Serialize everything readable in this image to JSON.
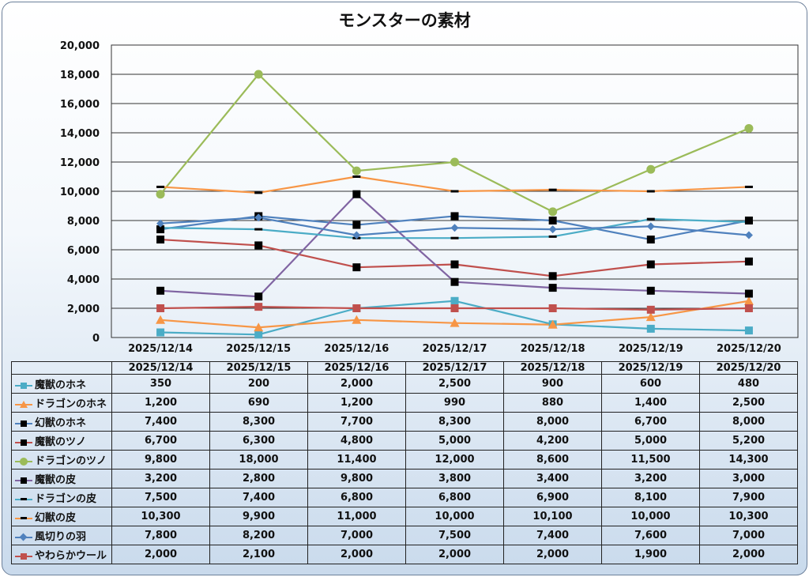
{
  "chart_data": {
    "type": "line",
    "title": "モンスターの素材",
    "categories": [
      "2025/12/14",
      "2025/12/15",
      "2025/12/16",
      "2025/12/17",
      "2025/12/18",
      "2025/12/19",
      "2025/12/20"
    ],
    "ylim": [
      0,
      20000
    ],
    "yticks": [
      "0",
      "2,000",
      "4,000",
      "6,000",
      "8,000",
      "10,000",
      "12,000",
      "14,000",
      "16,000",
      "18,000",
      "20,000"
    ],
    "grid": true,
    "legend": "data-table",
    "series": [
      {
        "name": "魔獣のホネ",
        "values": [
          350,
          200,
          2000,
          2500,
          900,
          600,
          480
        ],
        "labels": [
          "350",
          "200",
          "2,000",
          "2,500",
          "900",
          "600",
          "480"
        ],
        "color": "#4bacc6",
        "marker": "square"
      },
      {
        "name": "ドラゴンのホネ",
        "values": [
          1200,
          690,
          1200,
          990,
          880,
          1400,
          2500
        ],
        "labels": [
          "1,200",
          "690",
          "1,200",
          "990",
          "880",
          "1,400",
          "2,500"
        ],
        "color": "#f79646",
        "marker": "triangle"
      },
      {
        "name": "幻獣のホネ",
        "values": [
          7400,
          8300,
          7700,
          8300,
          8000,
          6700,
          8000
        ],
        "labels": [
          "7,400",
          "8,300",
          "7,700",
          "8,300",
          "8,000",
          "6,700",
          "8,000"
        ],
        "color": "#4f81bd",
        "marker": "square-black"
      },
      {
        "name": "魔獣のツノ",
        "values": [
          6700,
          6300,
          4800,
          5000,
          4200,
          5000,
          5200
        ],
        "labels": [
          "6,700",
          "6,300",
          "4,800",
          "5,000",
          "4,200",
          "5,000",
          "5,200"
        ],
        "color": "#c0504d",
        "marker": "square-black"
      },
      {
        "name": "ドラゴンのツノ",
        "values": [
          9800,
          18000,
          11400,
          12000,
          8600,
          11500,
          14300
        ],
        "labels": [
          "9,800",
          "18,000",
          "11,400",
          "12,000",
          "8,600",
          "11,500",
          "14,300"
        ],
        "color": "#9bbb59",
        "marker": "circle"
      },
      {
        "name": "魔獣の皮",
        "values": [
          3200,
          2800,
          9800,
          3800,
          3400,
          3200,
          3000
        ],
        "labels": [
          "3,200",
          "2,800",
          "9,800",
          "3,800",
          "3,400",
          "3,200",
          "3,000"
        ],
        "color": "#8064a2",
        "marker": "square-black"
      },
      {
        "name": "ドラゴンの皮",
        "values": [
          7500,
          7400,
          6800,
          6800,
          6900,
          8100,
          7900
        ],
        "labels": [
          "7,500",
          "7,400",
          "6,800",
          "6,800",
          "6,900",
          "8,100",
          "7,900"
        ],
        "color": "#4bacc6",
        "marker": "dash"
      },
      {
        "name": "幻獣の皮",
        "values": [
          10300,
          9900,
          11000,
          10000,
          10100,
          10000,
          10300
        ],
        "labels": [
          "10,300",
          "9,900",
          "11,000",
          "10,000",
          "10,100",
          "10,000",
          "10,300"
        ],
        "color": "#f79646",
        "marker": "dash"
      },
      {
        "name": "風切りの羽",
        "values": [
          7800,
          8200,
          7000,
          7500,
          7400,
          7600,
          7000
        ],
        "labels": [
          "7,800",
          "8,200",
          "7,000",
          "7,500",
          "7,400",
          "7,600",
          "7,000"
        ],
        "color": "#4f81bd",
        "marker": "diamond"
      },
      {
        "name": "やわらかウール",
        "values": [
          2000,
          2100,
          2000,
          2000,
          2000,
          1900,
          2000
        ],
        "labels": [
          "2,000",
          "2,100",
          "2,000",
          "2,000",
          "2,000",
          "1,900",
          "2,000"
        ],
        "color": "#c0504d",
        "marker": "square"
      }
    ]
  }
}
